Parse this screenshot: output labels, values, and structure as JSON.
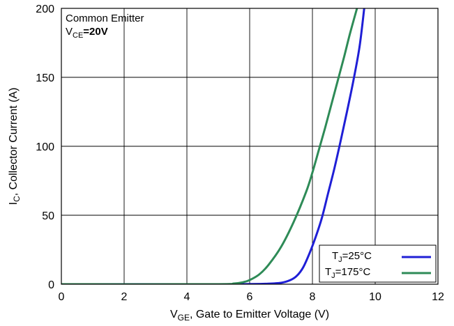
{
  "chart_data": {
    "type": "line",
    "annotation": {
      "line1": "Common Emitter",
      "line2_main": "V",
      "line2_sub": "CE",
      "line2_rest": "=20V"
    },
    "xlabel": {
      "main": "V",
      "sub": "GE",
      "rest": ", Gate to Emitter Voltage (V)"
    },
    "ylabel": {
      "main": "I",
      "sub": "C",
      "rest": ", Collector Current (A)"
    },
    "xlim": [
      0,
      12
    ],
    "ylim": [
      0,
      200
    ],
    "xticks": [
      0,
      2,
      4,
      6,
      8,
      10,
      12
    ],
    "yticks": [
      0,
      50,
      100,
      150,
      200
    ],
    "grid": true,
    "legend_position": "bottom-right",
    "series": [
      {
        "name": "TJ=25°C",
        "legend": {
          "main": "T",
          "sub": "J",
          "rest": "=25°C"
        },
        "color": "#1f1fd6",
        "x": [
          0,
          5,
          6,
          6.5,
          7.0,
          7.3,
          7.5,
          7.7,
          7.9,
          8.1,
          8.3,
          8.5,
          8.7,
          8.9,
          9.1,
          9.3,
          9.5,
          9.65
        ],
        "y": [
          0,
          0,
          0.1,
          0.3,
          1,
          3,
          6,
          12,
          22,
          34,
          48,
          66,
          84,
          104,
          125,
          147,
          172,
          200
        ]
      },
      {
        "name": "TJ=175°C",
        "legend": {
          "main": "T",
          "sub": "J",
          "rest": "=175°C"
        },
        "color": "#2e8b57",
        "x": [
          0,
          4.8,
          5.5,
          5.8,
          6.0,
          6.3,
          6.6,
          7.0,
          7.4,
          7.8,
          8.0,
          8.2,
          8.4,
          8.6,
          8.8,
          9.0,
          9.2,
          9.42
        ],
        "y": [
          0,
          0,
          0.5,
          1.5,
          3,
          7,
          14,
          27,
          45,
          67,
          81,
          97,
          113,
          130,
          147,
          164,
          182,
          200
        ]
      }
    ]
  }
}
